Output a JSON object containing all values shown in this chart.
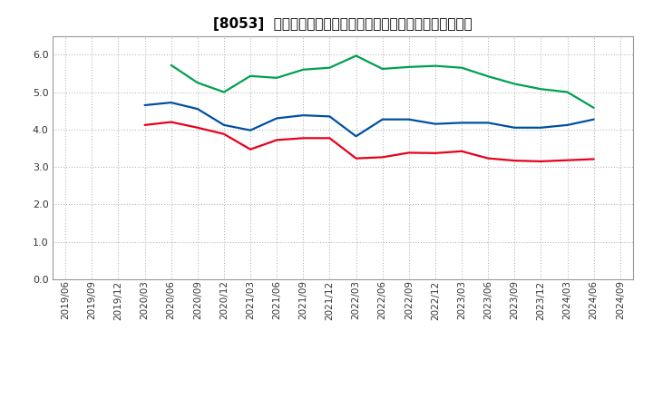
{
  "title": "[8053]  売上債権回転率、買入債務回転率、在庫回転率の推移",
  "x_labels": [
    "2019/06",
    "2019/09",
    "2019/12",
    "2020/03",
    "2020/06",
    "2020/09",
    "2020/12",
    "2021/03",
    "2021/06",
    "2021/09",
    "2021/12",
    "2022/03",
    "2022/06",
    "2022/09",
    "2022/12",
    "2023/03",
    "2023/06",
    "2023/09",
    "2023/12",
    "2024/03",
    "2024/06",
    "2024/09"
  ],
  "売上債権回転率": [
    null,
    null,
    null,
    4.12,
    4.2,
    4.05,
    3.88,
    3.47,
    3.72,
    3.77,
    3.77,
    3.23,
    3.26,
    3.38,
    3.37,
    3.42,
    3.23,
    3.17,
    3.15,
    3.18,
    3.21,
    null
  ],
  "買入債務回転率": [
    null,
    null,
    null,
    4.65,
    4.72,
    4.55,
    4.12,
    3.98,
    4.3,
    4.38,
    4.35,
    3.82,
    4.27,
    4.27,
    4.15,
    4.18,
    4.18,
    4.05,
    4.05,
    4.12,
    4.27,
    null
  ],
  "在庫回転率": [
    null,
    null,
    null,
    null,
    5.72,
    5.25,
    5.0,
    5.43,
    5.38,
    5.6,
    5.65,
    5.97,
    5.62,
    5.67,
    5.7,
    5.65,
    5.42,
    5.22,
    5.08,
    5.0,
    4.58,
    null
  ],
  "colors": {
    "売上債権回転率": "#e8001c",
    "買入債務回転率": "#0050a0",
    "在庫回転率": "#00a050"
  },
  "ylim": [
    0.0,
    6.5
  ],
  "yticks": [
    0.0,
    1.0,
    2.0,
    3.0,
    4.0,
    5.0,
    6.0
  ],
  "legend_labels": [
    "売上債権回転率",
    "買入債務回転率",
    "在庫回転率"
  ],
  "background_color": "#ffffff",
  "grid_color": "#aaaaaa",
  "title_fontsize": 11,
  "tick_fontsize": 8,
  "legend_fontsize": 9
}
